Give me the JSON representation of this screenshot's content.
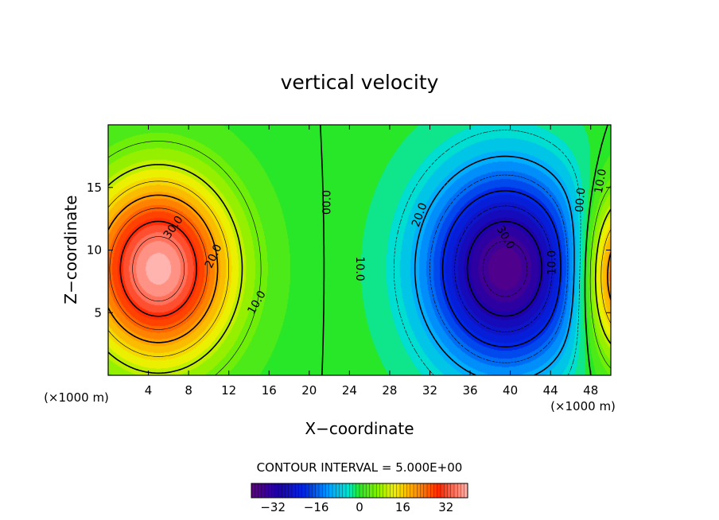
{
  "chart_data": {
    "type": "heatmap",
    "title": "vertical velocity",
    "xlabel": "X−coordinate",
    "ylabel": "Z−coordinate",
    "x_unit_left": "(×1000 m)",
    "x_unit_right": "(×1000 m)",
    "xlim": [
      0,
      50
    ],
    "ylim": [
      0,
      20
    ],
    "x_ticks": [
      4,
      8,
      12,
      16,
      20,
      24,
      28,
      32,
      36,
      40,
      44,
      48
    ],
    "y_ticks": [
      5,
      10,
      15
    ],
    "contour_interval_label": "CONTOUR INTERVAL = 5.000E+00",
    "colorbar": {
      "min": -40,
      "max": 40,
      "ticks": [
        -32,
        -16,
        0,
        16,
        32
      ]
    },
    "cells": [
      {
        "name": "updraft-left",
        "cx": 5.0,
        "cz": 8.5,
        "amp": 40.0,
        "sx": 5.0,
        "sz": 5.0
      },
      {
        "name": "downdraft-center",
        "cx": 39.5,
        "cz": 8.5,
        "amp": -38.0,
        "sx": 5.5,
        "sz": 5.5
      },
      {
        "name": "updraft-right",
        "cx": 51.0,
        "cz": 8.0,
        "amp": 30.0,
        "sx": 2.8,
        "sz": 4.5
      }
    ],
    "contour_labels": [
      {
        "text": "30.0",
        "x": 6.5,
        "z": 11.8,
        "angle": -55
      },
      {
        "text": "20.0",
        "x": 10.5,
        "z": 9.5,
        "angle": -65
      },
      {
        "text": "10.0",
        "x": 14.8,
        "z": 5.8,
        "angle": -60
      },
      {
        "text": "00.0",
        "x": 21.8,
        "z": 13.8,
        "angle": -90
      },
      {
        "text": "10.0",
        "x": 25.0,
        "z": 8.5,
        "angle": 90
      },
      {
        "text": "20.0",
        "x": 31.0,
        "z": 12.8,
        "angle": -70
      },
      {
        "text": "30.0",
        "x": 39.5,
        "z": 11.0,
        "angle": 60
      },
      {
        "text": "10.0",
        "x": 44.2,
        "z": 9.0,
        "angle": -90
      },
      {
        "text": "00.0",
        "x": 47.0,
        "z": 14.0,
        "angle": -85
      },
      {
        "text": "10.0",
        "x": 49.0,
        "z": 15.5,
        "angle": -80
      }
    ]
  }
}
